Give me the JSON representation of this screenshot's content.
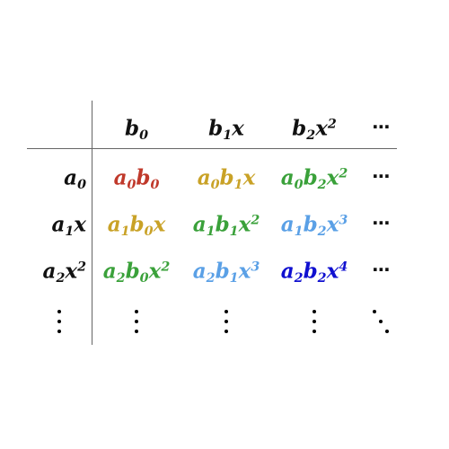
{
  "colors": {
    "text": "#111111",
    "red": "#c0392b",
    "gold": "#c9a227",
    "green": "#3aa13a",
    "lightblue": "#5aa0e6",
    "blue": "#1010d0",
    "rule": "#666666"
  },
  "header": {
    "cols": [
      [
        {
          "t": "b",
          "sub": "0"
        }
      ],
      [
        {
          "t": "b",
          "sub": "1"
        },
        {
          "t": "x"
        }
      ],
      [
        {
          "t": "b",
          "sub": "2"
        },
        {
          "t": "x",
          "sup": "2"
        }
      ]
    ]
  },
  "rows": [
    {
      "label": [
        {
          "t": "a",
          "sub": "0"
        }
      ],
      "cells": [
        {
          "color": "red",
          "parts": [
            {
              "t": "a",
              "sub": "0"
            },
            {
              "t": "b",
              "sub": "0"
            }
          ]
        },
        {
          "color": "gold",
          "parts": [
            {
              "t": "a",
              "sub": "0"
            },
            {
              "t": "b",
              "sub": "1"
            },
            {
              "t": "x"
            }
          ]
        },
        {
          "color": "green",
          "parts": [
            {
              "t": "a",
              "sub": "0"
            },
            {
              "t": "b",
              "sub": "2"
            },
            {
              "t": "x",
              "sup": "2"
            }
          ]
        }
      ]
    },
    {
      "label": [
        {
          "t": "a",
          "sub": "1"
        },
        {
          "t": "x"
        }
      ],
      "cells": [
        {
          "color": "gold",
          "parts": [
            {
              "t": "a",
              "sub": "1"
            },
            {
              "t": "b",
              "sub": "0"
            },
            {
              "t": "x"
            }
          ]
        },
        {
          "color": "green",
          "parts": [
            {
              "t": "a",
              "sub": "1"
            },
            {
              "t": "b",
              "sub": "1"
            },
            {
              "t": "x",
              "sup": "2"
            }
          ]
        },
        {
          "color": "lightblue",
          "parts": [
            {
              "t": "a",
              "sub": "1"
            },
            {
              "t": "b",
              "sub": "2"
            },
            {
              "t": "x",
              "sup": "3"
            }
          ]
        }
      ]
    },
    {
      "label": [
        {
          "t": "a",
          "sub": "2"
        },
        {
          "t": "x",
          "sup": "2"
        }
      ],
      "cells": [
        {
          "color": "green",
          "parts": [
            {
              "t": "a",
              "sub": "2"
            },
            {
              "t": "b",
              "sub": "0"
            },
            {
              "t": "x",
              "sup": "2"
            }
          ]
        },
        {
          "color": "lightblue",
          "parts": [
            {
              "t": "a",
              "sub": "2"
            },
            {
              "t": "b",
              "sub": "1"
            },
            {
              "t": "x",
              "sup": "3"
            }
          ]
        },
        {
          "color": "blue",
          "parts": [
            {
              "t": "a",
              "sub": "2"
            },
            {
              "t": "b",
              "sub": "2"
            },
            {
              "t": "x",
              "sup": "4"
            }
          ]
        }
      ]
    }
  ],
  "ellipsis": "⋯"
}
